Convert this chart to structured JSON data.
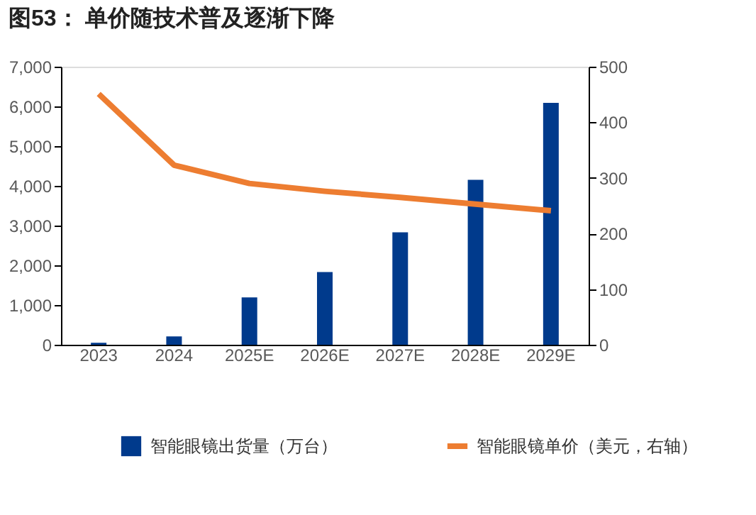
{
  "chart_data": {
    "type": "bar",
    "title": "图53：    单价随技术普及逐渐下降",
    "categories": [
      "2023",
      "2024",
      "2025E",
      "2026E",
      "2027E",
      "2028E",
      "2029E"
    ],
    "series": [
      {
        "name": "智能眼镜出货量（万台）",
        "color": "#003a8c",
        "values": [
          50,
          210,
          1190,
          1830,
          2830,
          4150,
          6090
        ]
      },
      {
        "name": "智能眼镜单价（美元，右轴）",
        "color": "#ed7d31",
        "type": "line",
        "axis": "y2",
        "values": [
          451,
          323,
          290,
          276,
          265,
          253,
          241
        ]
      }
    ],
    "ylim": [
      0,
      7000
    ],
    "yticks": [
      0,
      {
        "value": 1000,
        "label": "1,000"
      },
      {
        "value": 2000,
        "label": "2,000"
      },
      {
        "value": 3000,
        "label": "3,000"
      },
      {
        "value": 4000,
        "label": "4,000"
      },
      {
        "value": 5000,
        "label": "5,000"
      },
      {
        "value": 6000,
        "label": "6,000"
      },
      {
        "value": 7000,
        "label": "7,000"
      }
    ],
    "y2lim": [
      0,
      500
    ],
    "y2ticks": [
      0,
      100,
      200,
      300,
      400,
      500
    ],
    "grid": false,
    "legend": "bottom"
  }
}
